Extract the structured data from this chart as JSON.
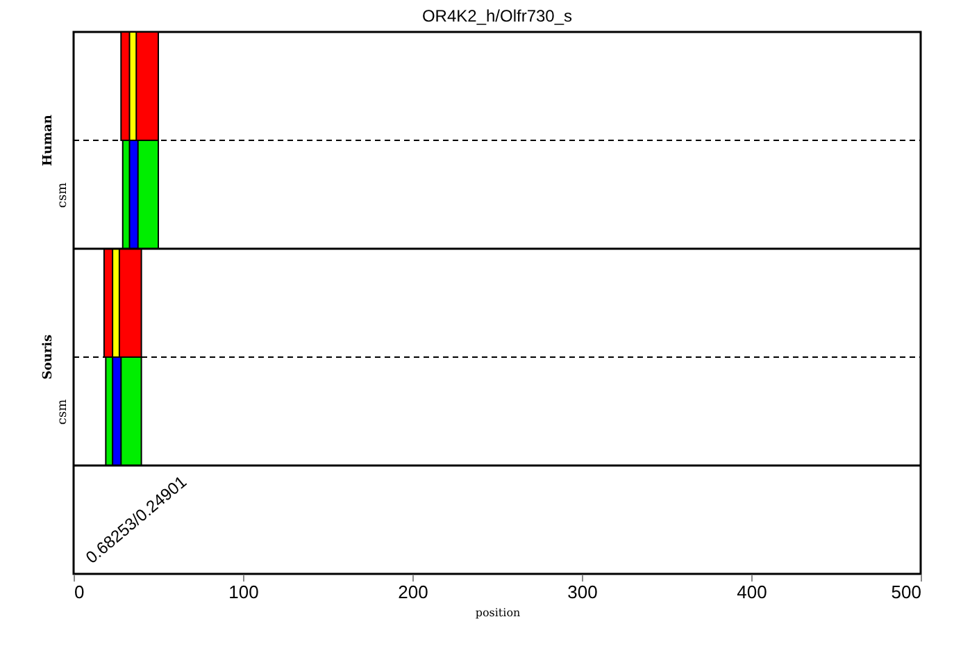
{
  "chart_data": {
    "type": "bar",
    "orientation": "horizontal",
    "title": "OR4K2_h/Olfr730_s",
    "xlabel": "position",
    "categories": [
      null,
      "csm",
      null,
      "csm",
      null
    ],
    "series": [
      {
        "color": "#ff0000",
        "base": [
          28,
          null,
          18,
          null,
          null
        ],
        "values": [
          22,
          null,
          22,
          null,
          null
        ]
      },
      {
        "color": "#00ee00",
        "base": [
          null,
          29,
          null,
          19,
          null
        ],
        "values": [
          null,
          21,
          null,
          21,
          null
        ]
      },
      {
        "color": "#ffff00",
        "base": [
          33,
          null,
          23,
          null,
          null
        ],
        "values": [
          4,
          null,
          4,
          null,
          null
        ]
      },
      {
        "color": "#0000ff",
        "base": [
          null,
          33,
          null,
          23,
          null
        ],
        "values": [
          null,
          5,
          null,
          5,
          null
        ]
      }
    ],
    "annotations": [
      "Human",
      "Souris",
      "0.68253/0.24901"
    ],
    "xlim": [
      0,
      500
    ],
    "xticks": [
      0,
      100,
      200,
      300,
      400,
      500
    ],
    "grid": false
  }
}
